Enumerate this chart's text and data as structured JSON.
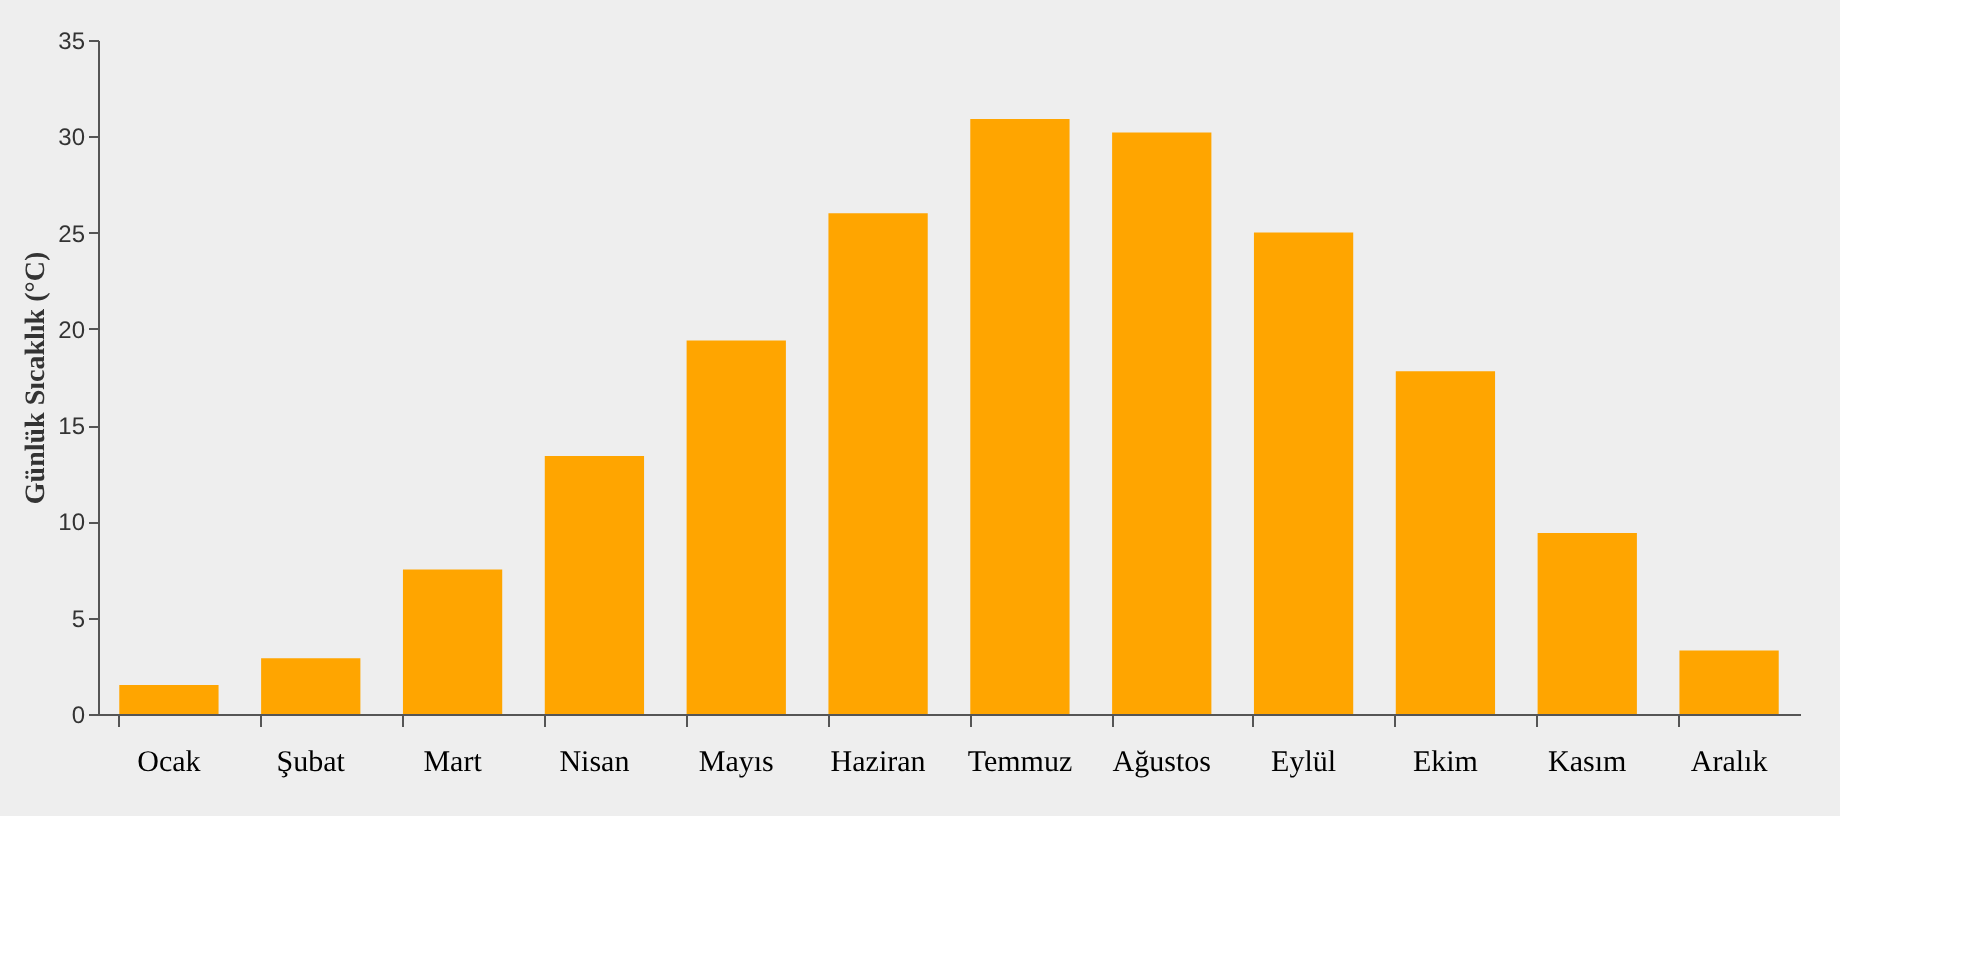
{
  "chart_data": {
    "type": "bar",
    "ylabel": "Günlük Sıcaklık (°C)",
    "categories": [
      "Ocak",
      "Şubat",
      "Mart",
      "Nisan",
      "Mayıs",
      "Haziran",
      "Temmuz",
      "Ağustos",
      "Eylül",
      "Ekim",
      "Kasım",
      "Aralık"
    ],
    "values": [
      1.5,
      2.9,
      7.5,
      13.4,
      19.4,
      26.0,
      30.9,
      30.2,
      25.0,
      17.8,
      9.4,
      3.3
    ],
    "color": "#ffa500",
    "ylim": [
      0,
      35
    ],
    "yticks": [
      0,
      5,
      10,
      15,
      20,
      25,
      30,
      35
    ],
    "grid": false,
    "legend": false
  }
}
